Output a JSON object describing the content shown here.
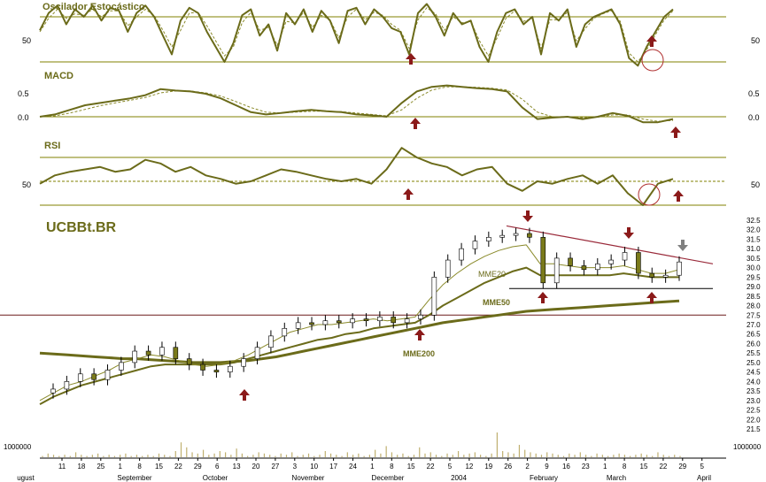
{
  "chart_data": [
    {
      "type": "line",
      "title": "Oscilador Estocástico",
      "y_tick_labels_left": [
        "50"
      ],
      "y_tick_labels_right": [
        "50"
      ],
      "reference_lines": [
        80,
        20
      ],
      "series": [
        {
          "style": "solid",
          "values": [
            62,
            85,
            95,
            70,
            90,
            80,
            95,
            75,
            92,
            88,
            60,
            85,
            95,
            80,
            55,
            30,
            75,
            92,
            85,
            60,
            40,
            20,
            45,
            82,
            90,
            55,
            70,
            35,
            85,
            70,
            90,
            60,
            88,
            75,
            45,
            88,
            92,
            70,
            90,
            80,
            65,
            60,
            30,
            85,
            97,
            80,
            55,
            85,
            70,
            75,
            40,
            20,
            60,
            85,
            90,
            70,
            80,
            30,
            85,
            75,
            90,
            40,
            70,
            80,
            85,
            90,
            70,
            25,
            15,
            40,
            60,
            80,
            90
          ]
        },
        {
          "style": "dashed",
          "values": [
            60,
            78,
            90,
            78,
            84,
            82,
            90,
            80,
            88,
            88,
            68,
            80,
            90,
            82,
            62,
            40,
            62,
            85,
            86,
            68,
            48,
            28,
            40,
            72,
            86,
            62,
            66,
            42,
            74,
            72,
            86,
            66,
            82,
            76,
            52,
            80,
            90,
            76,
            86,
            82,
            70,
            62,
            38,
            76,
            92,
            84,
            62,
            80,
            72,
            74,
            48,
            28,
            52,
            78,
            88,
            74,
            78,
            38,
            76,
            76,
            86,
            48,
            64,
            78,
            84,
            88,
            74,
            32,
            20,
            36,
            56,
            76,
            88
          ]
        }
      ],
      "markers": [
        {
          "type": "arrow-up",
          "color": "#8b1a1a"
        },
        {
          "type": "arrow-up",
          "color": "#8b1a1a"
        },
        {
          "type": "circle",
          "color": "#b03030"
        }
      ]
    },
    {
      "type": "line",
      "title": "MACD",
      "y_tick_labels_left": [
        "0.5",
        "0.0"
      ],
      "y_tick_labels_right": [
        "0.5",
        "0.0"
      ],
      "reference_lines": [
        0
      ],
      "series": [
        {
          "style": "solid",
          "values": [
            0.0,
            0.05,
            0.15,
            0.25,
            0.3,
            0.35,
            0.4,
            0.47,
            0.6,
            0.57,
            0.55,
            0.5,
            0.4,
            0.25,
            0.1,
            0.05,
            0.08,
            0.12,
            0.15,
            0.12,
            0.1,
            0.05,
            0.03,
            0.0,
            0.3,
            0.55,
            0.65,
            0.68,
            0.65,
            0.62,
            0.6,
            0.55,
            0.2,
            -0.05,
            -0.02,
            0.0,
            -0.05,
            0.0,
            0.08,
            0.02,
            -0.12,
            -0.12,
            -0.05
          ]
        },
        {
          "style": "dashed",
          "values": [
            0.0,
            0.02,
            0.08,
            0.16,
            0.24,
            0.3,
            0.36,
            0.42,
            0.52,
            0.56,
            0.56,
            0.52,
            0.45,
            0.33,
            0.2,
            0.1,
            0.08,
            0.1,
            0.12,
            0.12,
            0.11,
            0.08,
            0.05,
            0.02,
            0.15,
            0.4,
            0.58,
            0.65,
            0.65,
            0.64,
            0.62,
            0.58,
            0.38,
            0.1,
            0.0,
            0.0,
            -0.02,
            -0.01,
            0.04,
            0.04,
            -0.05,
            -0.1,
            -0.08
          ]
        }
      ],
      "markers": [
        {
          "type": "arrow-up",
          "color": "#8b1a1a"
        },
        {
          "type": "arrow-up",
          "color": "#8b1a1a"
        }
      ]
    },
    {
      "type": "line",
      "title": "RSI",
      "y_tick_labels_left": [
        "50"
      ],
      "y_tick_labels_right": [
        "50"
      ],
      "reference_lines": [
        70,
        50,
        30
      ],
      "series": [
        {
          "style": "solid",
          "values": [
            48,
            55,
            58,
            60,
            62,
            58,
            60,
            68,
            65,
            58,
            62,
            55,
            52,
            48,
            50,
            55,
            60,
            58,
            55,
            52,
            50,
            52,
            48,
            60,
            78,
            70,
            65,
            62,
            55,
            60,
            62,
            48,
            42,
            50,
            48,
            52,
            55,
            48,
            55,
            40,
            30,
            48,
            52
          ]
        }
      ],
      "markers": [
        {
          "type": "arrow-up",
          "color": "#8b1a1a"
        },
        {
          "type": "circle",
          "color": "#b03030"
        },
        {
          "type": "arrow-up",
          "color": "#8b1a1a"
        }
      ]
    },
    {
      "type": "candlestick",
      "title": "UCBBt.BR",
      "ylim": [
        21.5,
        32.5
      ],
      "y_tick_labels": [
        "32.5",
        "32.0",
        "31.5",
        "31.0",
        "30.5",
        "30.0",
        "29.5",
        "29.0",
        "28.5",
        "28.0",
        "27.5",
        "27.0",
        "26.5",
        "26.0",
        "25.5",
        "25.0",
        "24.5",
        "24.0",
        "23.5",
        "23.0",
        "22.5",
        "22.0",
        "21.5"
      ],
      "close": [
        23.6,
        24.0,
        24.4,
        24.1,
        24.6,
        25.0,
        25.6,
        25.4,
        25.8,
        25.2,
        24.9,
        24.6,
        24.5,
        24.8,
        25.2,
        25.8,
        26.4,
        26.8,
        27.1,
        27.0,
        27.2,
        27.1,
        27.3,
        27.2,
        27.4,
        27.1,
        27.3,
        27.5,
        29.5,
        30.4,
        31.0,
        31.4,
        31.6,
        31.7,
        31.8,
        31.6,
        29.2,
        30.5,
        30.1,
        29.9,
        30.2,
        30.4,
        30.8,
        29.7,
        29.5,
        29.6,
        30.3
      ],
      "series": [
        {
          "name": "MME20",
          "values": [
            23.0,
            23.4,
            23.8,
            24.0,
            24.3,
            24.6,
            25.0,
            25.2,
            25.4,
            25.3,
            25.1,
            24.9,
            24.8,
            24.9,
            25.1,
            25.4,
            25.8,
            26.2,
            26.6,
            26.8,
            27.0,
            27.0,
            27.1,
            27.2,
            27.3,
            27.2,
            27.3,
            27.4,
            28.3,
            29.1,
            29.7,
            30.2,
            30.6,
            30.9,
            31.1,
            31.2,
            30.2,
            30.2,
            30.1,
            30.0,
            30.0,
            30.0,
            30.1,
            29.9,
            29.7,
            29.7,
            29.9
          ]
        },
        {
          "name": "MME50",
          "values": [
            22.8,
            23.2,
            23.5,
            23.8,
            24.0,
            24.2,
            24.4,
            24.6,
            24.8,
            24.9,
            24.9,
            24.9,
            24.9,
            24.9,
            25.0,
            25.2,
            25.4,
            25.6,
            25.8,
            26.0,
            26.2,
            26.3,
            26.5,
            26.6,
            26.8,
            26.9,
            27.0,
            27.1,
            27.5,
            28.0,
            28.4,
            28.8,
            29.2,
            29.5,
            29.8,
            30.0,
            29.6,
            29.6,
            29.6,
            29.6,
            29.6,
            29.6,
            29.7,
            29.6,
            29.5,
            29.5,
            29.5
          ]
        },
        {
          "name": "MME200",
          "values": [
            25.5,
            25.45,
            25.4,
            25.35,
            25.3,
            25.25,
            25.2,
            25.2,
            25.15,
            25.1,
            25.05,
            25.0,
            25.0,
            25.0,
            25.05,
            25.1,
            25.2,
            25.3,
            25.45,
            25.6,
            25.75,
            25.9,
            26.05,
            26.2,
            26.35,
            26.5,
            26.65,
            26.8,
            26.95,
            27.1,
            27.2,
            27.3,
            27.4,
            27.5,
            27.6,
            27.7,
            27.75,
            27.8,
            27.85,
            27.9,
            27.95,
            28.0,
            28.05,
            28.1,
            28.15,
            28.2,
            28.25
          ]
        }
      ],
      "reference_lines": [
        27.5,
        28.9
      ],
      "trendline": {
        "from": 32.2,
        "to": 30.2
      },
      "markers": [
        {
          "type": "arrow-up",
          "color": "#8b1a1a"
        },
        {
          "type": "arrow-up",
          "color": "#8b1a1a"
        },
        {
          "type": "arrow-down",
          "color": "#8b1a1a"
        },
        {
          "type": "arrow-up",
          "color": "#8b1a1a"
        },
        {
          "type": "arrow-down",
          "color": "#8b1a1a"
        },
        {
          "type": "arrow-up",
          "color": "#8b1a1a"
        },
        {
          "type": "arrow-down",
          "color": "#808080"
        }
      ]
    },
    {
      "type": "bar",
      "title": "",
      "y_tick_labels_left": [
        "1000000"
      ],
      "y_tick_labels_right": [
        "1000000"
      ],
      "values": [
        1,
        3,
        2,
        1,
        2,
        1,
        4,
        2,
        1,
        2,
        3,
        1,
        2,
        1,
        2,
        3,
        1,
        2,
        1,
        2,
        1,
        3,
        2,
        1,
        5,
        12,
        8,
        4,
        3,
        6,
        2,
        3,
        5,
        4,
        2,
        7,
        3,
        1,
        2,
        4,
        3,
        2,
        1,
        3,
        2,
        4,
        1,
        2,
        3,
        1,
        2,
        5,
        3,
        2,
        1,
        4,
        2,
        3,
        1,
        2,
        6,
        3,
        9,
        4,
        2,
        3,
        1,
        2,
        8,
        3,
        4,
        2,
        1,
        3,
        2,
        5,
        2,
        3,
        4,
        2,
        1,
        3,
        20,
        5,
        4,
        3,
        10,
        6,
        4,
        3,
        2,
        4,
        3,
        2,
        1,
        3,
        2,
        4,
        2,
        1,
        3,
        2,
        1,
        2,
        3,
        2,
        1,
        2,
        3,
        2,
        1,
        4,
        2,
        1,
        2,
        1
      ]
    }
  ],
  "x_axis": {
    "day_labels": [
      "11",
      "18",
      "25",
      "1",
      "8",
      "15",
      "22",
      "29",
      "6",
      "13",
      "20",
      "27",
      "3",
      "10",
      "17",
      "24",
      "1",
      "8",
      "15",
      "22",
      "5",
      "12",
      "19",
      "26",
      "2",
      "9",
      "16",
      "23",
      "1",
      "8",
      "15",
      "22",
      "29",
      "5"
    ],
    "month_labels": [
      "ugust",
      "September",
      "October",
      "November",
      "December",
      "2004",
      "February",
      "March",
      "April"
    ]
  },
  "colors": {
    "price_line": "#6b6b1a",
    "ma_thick": "#6b6b1a",
    "ma_thin": "#8a8a2a",
    "candle_up": "#ffffff",
    "candle_down": "#7a7a1a",
    "grid": "#808000",
    "arrow_red": "#8b1a1a",
    "arrow_gray": "#808080",
    "trendline": "#9a2a3a",
    "support_line": "#000000",
    "volume": "#c0b070",
    "title": "#6b6b1a"
  }
}
